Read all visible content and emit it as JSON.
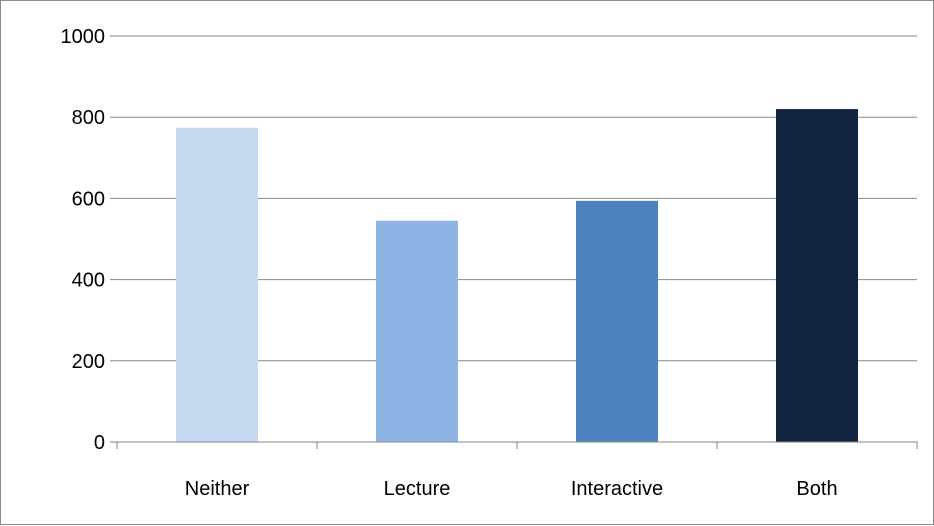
{
  "chart_data": {
    "type": "bar",
    "title": "",
    "xlabel": "",
    "ylabel": "",
    "categories": [
      "Neither",
      "Lecture",
      "Interactive",
      "Both"
    ],
    "values": [
      774,
      545,
      594,
      820
    ],
    "bar_colors": [
      "#c6d9f1",
      "#8eb4e3",
      "#4f81bd",
      "#10243f"
    ],
    "ylim": [
      0,
      1000
    ],
    "yticks": [
      0,
      200,
      400,
      600,
      800,
      1000
    ],
    "ytick_labels": [
      "0",
      "200",
      "400",
      "600",
      "800",
      "1000"
    ],
    "grid": true,
    "gridline_color": "#868686",
    "legend": "none"
  }
}
